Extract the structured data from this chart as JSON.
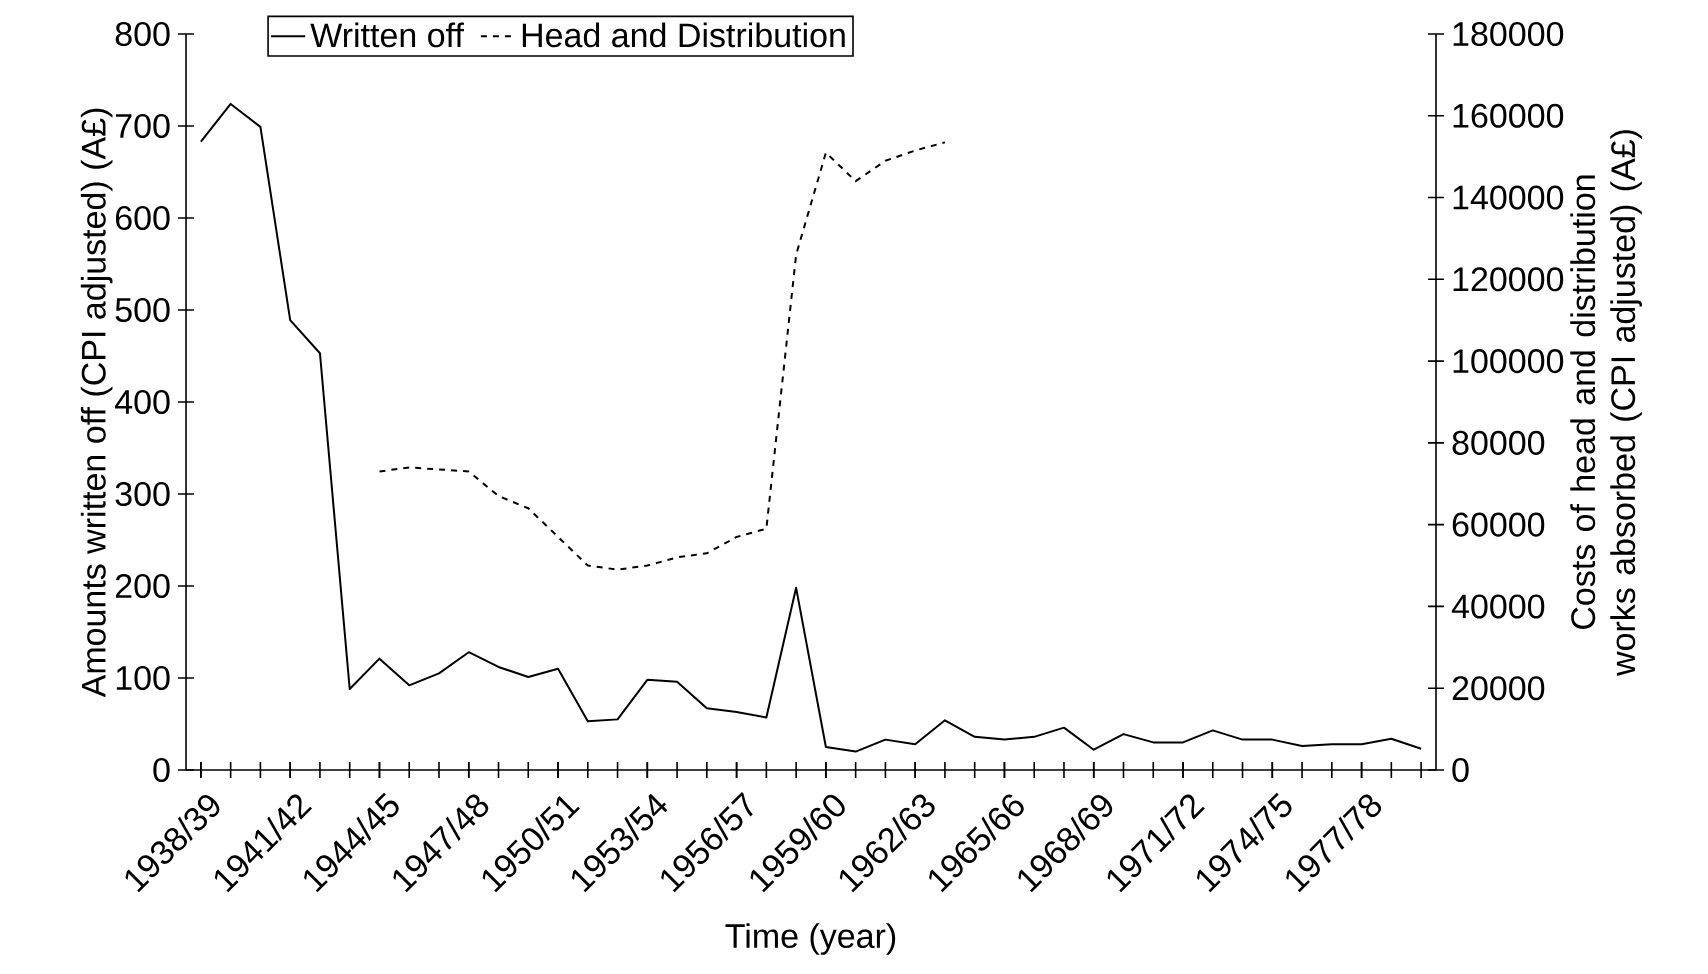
{
  "chart_data": {
    "type": "line",
    "xlabel": "Time (year)",
    "ylabel": "Amounts written off (CPI adjusted) (A£)",
    "y2label": "Costs of head and distribution works absorbed (CPI adjusted) (A£)",
    "categories": [
      "1938/39",
      null,
      null,
      "1941/42",
      null,
      null,
      "1944/45",
      null,
      null,
      "1947/48",
      null,
      null,
      "1950/51",
      null,
      null,
      "1953/54",
      null,
      null,
      "1956/57",
      null,
      null,
      "1959/60",
      null,
      null,
      "1962/63",
      null,
      null,
      "1965/66",
      null,
      null,
      "1968/69",
      null,
      null,
      "1971/72",
      null,
      null,
      "1974/75",
      null,
      null,
      "1977/78",
      null,
      null
    ],
    "series": [
      {
        "name": "Written off",
        "color": "#000000",
        "line_style": "solid",
        "values": [
          683,
          724,
          699,
          489,
          453,
          88,
          121,
          92,
          105,
          128,
          112,
          101,
          110,
          53,
          55,
          98,
          96,
          67,
          63,
          57,
          198,
          25,
          20,
          33,
          28,
          54,
          36,
          33,
          36,
          46,
          22,
          39,
          30,
          30,
          43,
          33,
          33,
          26,
          28,
          28,
          34,
          23
        ]
      },
      {
        "name": "Head and Distribution",
        "color": "#000000",
        "line_style": "dashed",
        "axis": "y2",
        "values": [
          null,
          null,
          null,
          null,
          null,
          null,
          73000,
          74000,
          73500,
          73000,
          67000,
          64000,
          57000,
          50000,
          49000,
          50000,
          52000,
          53000,
          57000,
          59000,
          126000,
          151000,
          144000,
          149000,
          151500,
          153500,
          null,
          null,
          null,
          null,
          null,
          null,
          null,
          null,
          null,
          null,
          null,
          null,
          null,
          null,
          null,
          null
        ]
      }
    ],
    "ylim": [
      0,
      800
    ],
    "yticks": [
      0,
      100,
      200,
      300,
      400,
      500,
      600,
      700,
      800
    ],
    "y2lim": [
      0,
      180000
    ],
    "y2ticks": [
      0,
      20000,
      40000,
      60000,
      80000,
      100000,
      120000,
      140000,
      160000,
      180000
    ],
    "legend": "top",
    "grid": false,
    "marker": "none"
  }
}
